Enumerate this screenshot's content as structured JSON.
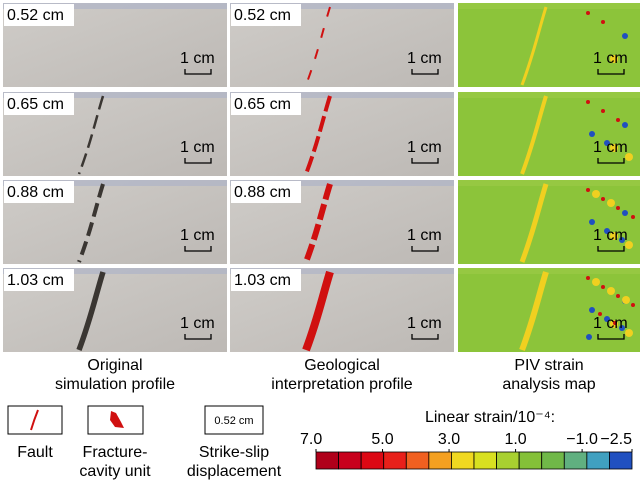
{
  "panels": {
    "displacements": [
      "0.52 cm",
      "0.65 cm",
      "0.88 cm",
      "1.03 cm"
    ],
    "scale_bar": "1 cm"
  },
  "columns": [
    {
      "caption": [
        "Original",
        "simulation profile"
      ]
    },
    {
      "caption": [
        "Geological",
        "interpretation profile"
      ]
    },
    {
      "caption": [
        "PIV strain",
        "analysis map"
      ]
    }
  ],
  "legend": [
    {
      "label": [
        "Fault"
      ]
    },
    {
      "label": [
        "Fracture-",
        "cavity unit"
      ]
    },
    {
      "label": [
        "Strike-slip",
        "displacement"
      ],
      "sample": "0.52 cm"
    }
  ],
  "colorbar": {
    "title": "Linear strain/10⁻⁴:",
    "lim": [
      7,
      -2.5
    ],
    "ticks": [
      {
        "value": 7,
        "label": "7.0"
      },
      {
        "value": 5,
        "label": "5.0"
      },
      {
        "value": 3,
        "label": "3.0"
      },
      {
        "value": 1,
        "label": "1.0"
      },
      {
        "value": -1,
        "label": "−1.0"
      },
      {
        "value": -2.5,
        "label": "−2.5"
      }
    ],
    "colors": [
      "#b0001a",
      "#c8001c",
      "#dc0814",
      "#e8201a",
      "#f06020",
      "#f4a020",
      "#f0d820",
      "#d8e020",
      "#a8d030",
      "#84c038",
      "#70b848",
      "#60b080",
      "#40a0c0",
      "#2050c0"
    ]
  }
}
